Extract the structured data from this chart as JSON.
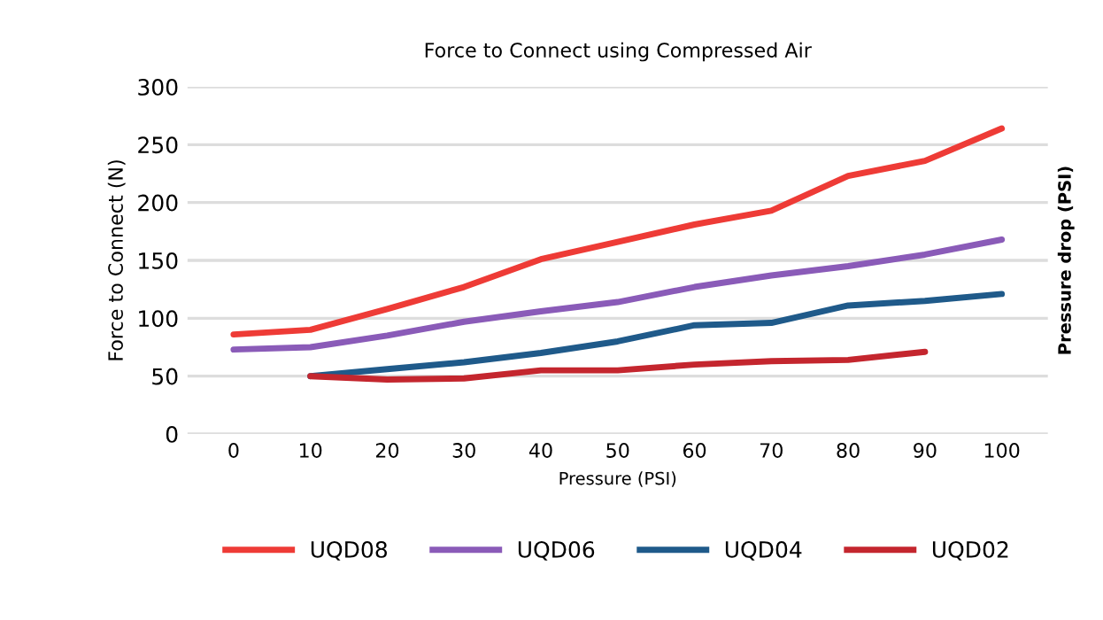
{
  "chart_data": {
    "type": "line",
    "title": "Force to Connect using Compressed Air",
    "xlabel": "Pressure (PSI)",
    "ylabel": "Force to Connect (N)",
    "y2label": "Pressure drop (PSI)",
    "categories": [
      "0",
      "10",
      "20",
      "30",
      "40",
      "50",
      "60",
      "70",
      "80",
      "90",
      "100"
    ],
    "series": [
      {
        "name": "UQD08",
        "color": "#ee3b36",
        "values": [
          86,
          90,
          108,
          127,
          151,
          166,
          181,
          193,
          223,
          236,
          264
        ]
      },
      {
        "name": "UQD06",
        "color": "#8a5bb8",
        "values": [
          73,
          75,
          85,
          97,
          106,
          114,
          127,
          137,
          145,
          155,
          168
        ]
      },
      {
        "name": "UQD04",
        "color": "#1f5a8a",
        "values": [
          null,
          50,
          56,
          62,
          70,
          80,
          94,
          96,
          111,
          115,
          121
        ]
      },
      {
        "name": "UQD02",
        "color": "#c4262e",
        "values": [
          null,
          50,
          47,
          48,
          55,
          55,
          60,
          63,
          64,
          71,
          null
        ]
      }
    ],
    "ylim": [
      0,
      300
    ],
    "yticks": [
      0,
      50,
      100,
      150,
      200,
      250,
      300
    ],
    "grid": "y",
    "legend": "bottom",
    "marker": "none",
    "line_style": "solid"
  }
}
